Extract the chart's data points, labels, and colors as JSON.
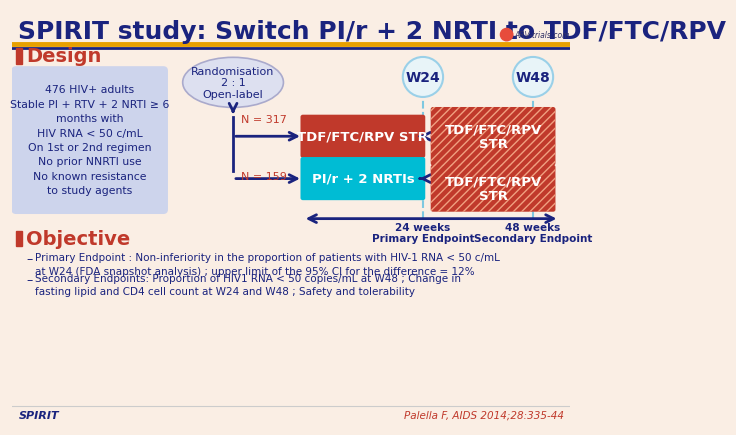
{
  "title": "SPIRIT study: Switch PI/r + 2 NRTI to TDF/FTC/RPV",
  "bg_color": "#faeee4",
  "title_color": "#1a237e",
  "title_fontsize": 18,
  "design_label": "Design",
  "design_color": "#c0392b",
  "randomisation_text": "Randomisation\n2 : 1\nOpen-label",
  "patient_box_text": "476 HIV+ adults\nStable PI + RTV + 2 NRTI ≥ 6\nmonths with\nHIV RNA < 50 c/mL\nOn 1st or 2nd regimen\nNo prior NNRTI use\nNo known resistance\nto study agents",
  "patient_box_color": "#cdd4ec",
  "n317_label": "N = 317",
  "n159_label": "N = 159",
  "tdf_box1_text": "TDF/FTC/RPV STR",
  "tdf_box1_color": "#c0392b",
  "pi_box_text": "PI/r + 2 NRTIs",
  "pi_box_color": "#00bcd4",
  "w24_label": "W24",
  "w48_label": "W48",
  "w24_circle_color": "#e8f4f8",
  "w48_circle_color": "#e8f4f8",
  "tdf_box2_text": "TDF/FTC/RPV\nSTR",
  "tdf_box2_color": "#c0392b",
  "tdf_box3_text": "TDF/FTC/RPV\nSTR",
  "tdf_box3_color": "#c0392b",
  "weeks24_label": "24 weeks\nPrimary Endpoint",
  "weeks48_label": "48 weeks\nSecondary Endpoint",
  "arrow_color": "#1a237e",
  "objective_label": "Objective",
  "objective_color": "#c0392b",
  "bullet1": "Primary Endpoint : Non-inferiority in the proportion of patients with HIV-1 RNA < 50 c/mL\nat W24 (FDA snapshot analysis) ; upper limit of the 95% CI for the difference = 12%",
  "bullet2": "Secondary Endpoints: Proportion of HIV1 RNA < 50 copies/mL at W48 ; Change in\nfasting lipid and CD4 cell count at W24 and W48 ; Safety and tolerability",
  "footer_left": "SPIRIT",
  "footer_right": "Palella F, AIDS 2014;28:335-44",
  "footer_color_left": "#1a237e",
  "footer_color_right": "#c0392b",
  "sep_color_orange": "#e8a000",
  "sep_color_blue": "#1a237e",
  "text_color_dark": "#1a237e",
  "text_color_light": "#ffffff",
  "rand_bubble_color": "#dde0f0",
  "rand_bubble_edge": "#aaaacc"
}
